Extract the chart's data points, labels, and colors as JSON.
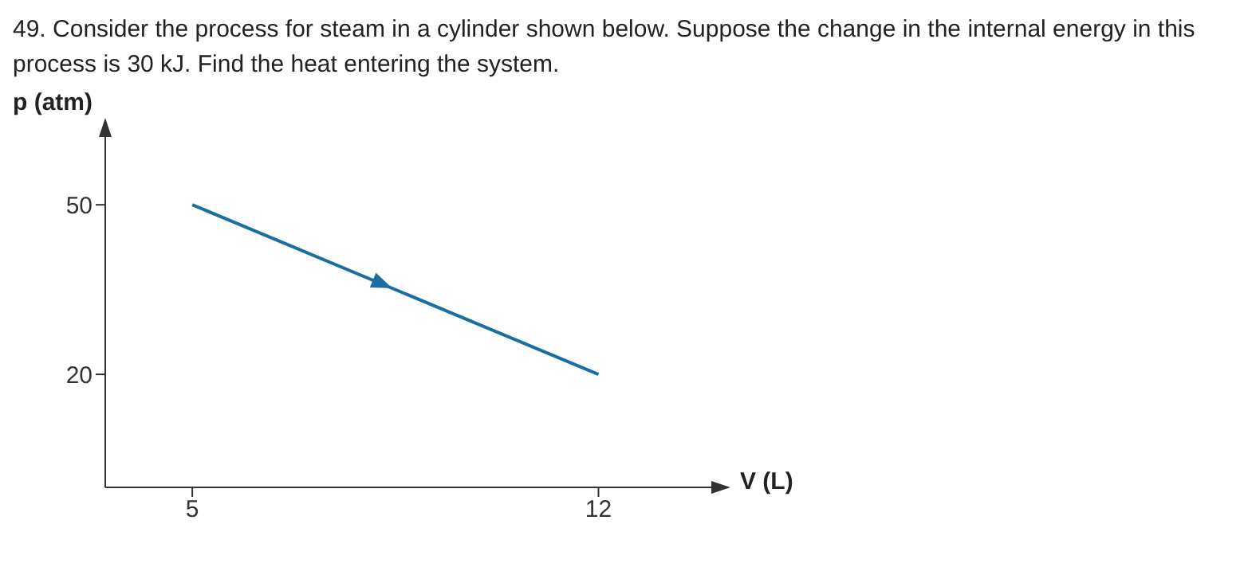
{
  "chart_data": {
    "type": "line",
    "title": "49. Consider the process for steam in a cylinder shown below. Suppose the change in the internal energy in this process is 30 kJ. Find the heat entering the system.",
    "xlabel": "V (L)",
    "ylabel": "p (atm)",
    "series": [
      {
        "color": "#1a6fa0",
        "x": [
          5,
          12
        ],
        "values": [
          50,
          20
        ]
      }
    ],
    "xlim": [
      3.5,
      14
    ],
    "xticks": [
      5,
      12
    ],
    "ylim": [
      0,
      62
    ],
    "yticks": [
      20,
      50
    ],
    "grid": false,
    "marker": "none",
    "line_style": "solid"
  }
}
